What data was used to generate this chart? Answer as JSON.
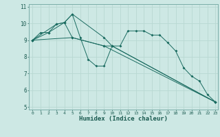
{
  "xlabel": "Humidex (Indice chaleur)",
  "bg_color": "#cde8e4",
  "grid_color": "#b8d8d2",
  "line_color": "#1a6b60",
  "xlim": [
    -0.5,
    23.3
  ],
  "ylim": [
    4.85,
    11.15
  ],
  "xticks": [
    0,
    1,
    2,
    3,
    4,
    5,
    6,
    7,
    8,
    9,
    10,
    11,
    12,
    13,
    14,
    15,
    16,
    17,
    18,
    19,
    20,
    21,
    22,
    23
  ],
  "yticks": [
    5,
    6,
    7,
    8,
    9,
    10,
    11
  ],
  "series1_x": [
    0,
    1,
    2,
    3,
    4,
    5,
    6,
    7,
    8,
    9,
    10,
    11,
    12,
    13,
    14,
    15,
    16,
    17,
    18,
    19,
    20,
    21,
    22,
    23
  ],
  "series1_y": [
    9.0,
    9.45,
    9.45,
    9.95,
    10.05,
    10.55,
    9.15,
    7.85,
    7.45,
    7.45,
    8.65,
    8.65,
    9.55,
    9.55,
    9.55,
    9.3,
    9.3,
    8.85,
    8.35,
    7.35,
    6.85,
    6.55,
    5.75,
    5.3
  ],
  "series2_x": [
    0,
    2,
    4,
    5,
    9,
    10,
    23
  ],
  "series2_y": [
    9.0,
    9.45,
    10.05,
    10.55,
    9.15,
    8.65,
    5.3
  ],
  "series3_x": [
    0,
    3,
    4,
    5,
    9,
    10,
    23
  ],
  "series3_y": [
    9.0,
    9.95,
    10.05,
    9.15,
    8.65,
    8.65,
    5.3
  ],
  "series4_x": [
    0,
    5,
    9,
    23
  ],
  "series4_y": [
    9.0,
    9.15,
    8.65,
    5.3
  ]
}
